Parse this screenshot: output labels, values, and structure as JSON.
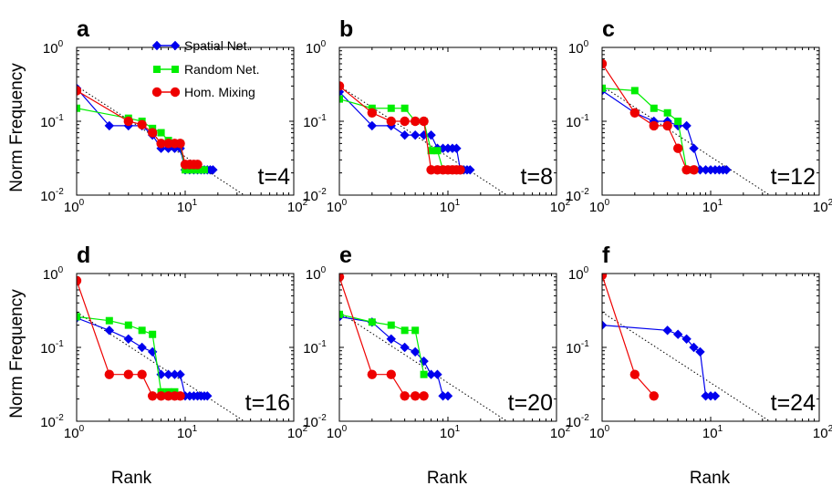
{
  "figure": {
    "ylabel": "Norm Frequency",
    "xlabel": "Rank",
    "x_tick_labels": [
      {
        "base": "10",
        "exp": "0"
      },
      {
        "base": "10",
        "exp": "1"
      },
      {
        "base": "10",
        "exp": "2"
      }
    ],
    "y_tick_labels": [
      {
        "base": "10",
        "exp": "0"
      },
      {
        "base": "10",
        "exp": "-1"
      },
      {
        "base": "10",
        "exp": "-2"
      }
    ]
  },
  "legend": [
    {
      "name": "Spatial Net.",
      "color": "#0000ee",
      "marker": "diamond"
    },
    {
      "name": "Random Net.",
      "color": "#00ee00",
      "marker": "square"
    },
    {
      "name": "Hom. Mixing",
      "color": "#ee0000",
      "marker": "circle"
    }
  ],
  "chart_data": [
    {
      "type": "line",
      "panel": "a",
      "time_label": "t=4",
      "xscale": "log",
      "yscale": "log",
      "xlim": [
        1,
        100
      ],
      "ylim": [
        0.01,
        1
      ],
      "reference_line": {
        "style": "dotted",
        "x": [
          1,
          35
        ],
        "y": [
          0.3,
          0.01
        ]
      },
      "series": [
        {
          "name": "Spatial Net.",
          "x": [
            1,
            2,
            3,
            4,
            5,
            6,
            7,
            8,
            9,
            10,
            11,
            12,
            13,
            14,
            15,
            16,
            17,
            18
          ],
          "y": [
            0.28,
            0.087,
            0.087,
            0.087,
            0.065,
            0.043,
            0.043,
            0.043,
            0.043,
            0.022,
            0.022,
            0.022,
            0.022,
            0.022,
            0.022,
            0.022,
            0.022,
            0.022
          ]
        },
        {
          "name": "Random Net.",
          "x": [
            1,
            3,
            4,
            5,
            6,
            7,
            8,
            9,
            10,
            11,
            12,
            13,
            14,
            15
          ],
          "y": [
            0.15,
            0.11,
            0.1,
            0.08,
            0.07,
            0.055,
            0.05,
            0.05,
            0.022,
            0.022,
            0.022,
            0.022,
            0.022,
            0.022
          ]
        },
        {
          "name": "Hom. Mixing",
          "x": [
            1,
            3,
            4,
            5,
            6,
            7,
            8,
            9,
            10,
            11,
            12,
            13
          ],
          "y": [
            0.26,
            0.1,
            0.09,
            0.07,
            0.05,
            0.05,
            0.05,
            0.05,
            0.026,
            0.026,
            0.026,
            0.026
          ]
        }
      ]
    },
    {
      "type": "line",
      "panel": "b",
      "time_label": "t=8",
      "xscale": "log",
      "yscale": "log",
      "xlim": [
        1,
        100
      ],
      "ylim": [
        0.01,
        1
      ],
      "reference_line": {
        "style": "dotted",
        "x": [
          1,
          35
        ],
        "y": [
          0.3,
          0.01
        ]
      },
      "series": [
        {
          "name": "Spatial Net.",
          "x": [
            1,
            2,
            3,
            4,
            5,
            6,
            7,
            8,
            9,
            10,
            11,
            12,
            13,
            14,
            15,
            16
          ],
          "y": [
            0.25,
            0.087,
            0.087,
            0.065,
            0.065,
            0.065,
            0.065,
            0.043,
            0.043,
            0.043,
            0.043,
            0.043,
            0.022,
            0.022,
            0.022,
            0.022
          ]
        },
        {
          "name": "Random Net.",
          "x": [
            1,
            2,
            3,
            4,
            5,
            6,
            7,
            8,
            9,
            10,
            11,
            12,
            13
          ],
          "y": [
            0.2,
            0.15,
            0.15,
            0.15,
            0.1,
            0.1,
            0.04,
            0.04,
            0.022,
            0.022,
            0.022,
            0.022,
            0.022
          ]
        },
        {
          "name": "Hom. Mixing",
          "x": [
            1,
            2,
            3,
            4,
            5,
            6,
            7,
            8,
            9,
            10,
            11,
            12,
            13
          ],
          "y": [
            0.3,
            0.13,
            0.1,
            0.1,
            0.1,
            0.1,
            0.022,
            0.022,
            0.022,
            0.022,
            0.022,
            0.022,
            0.022
          ]
        }
      ]
    },
    {
      "type": "line",
      "panel": "c",
      "time_label": "t=12",
      "xscale": "log",
      "yscale": "log",
      "xlim": [
        1,
        100
      ],
      "ylim": [
        0.01,
        1
      ],
      "reference_line": {
        "style": "dotted",
        "x": [
          1,
          35
        ],
        "y": [
          0.3,
          0.01
        ]
      },
      "series": [
        {
          "name": "Spatial Net.",
          "x": [
            1,
            2,
            3,
            4,
            5,
            6,
            7,
            8,
            9,
            10,
            11,
            12,
            13,
            14
          ],
          "y": [
            0.26,
            0.13,
            0.1,
            0.1,
            0.087,
            0.087,
            0.043,
            0.022,
            0.022,
            0.022,
            0.022,
            0.022,
            0.022,
            0.022
          ]
        },
        {
          "name": "Random Net.",
          "x": [
            1,
            2,
            3,
            4,
            5,
            6,
            7
          ],
          "y": [
            0.28,
            0.26,
            0.15,
            0.13,
            0.1,
            0.022,
            0.022
          ]
        },
        {
          "name": "Hom. Mixing",
          "x": [
            1,
            2,
            3,
            4,
            5,
            6,
            7
          ],
          "y": [
            0.6,
            0.13,
            0.087,
            0.087,
            0.043,
            0.022,
            0.022
          ]
        }
      ]
    },
    {
      "type": "line",
      "panel": "d",
      "time_label": "t=16",
      "xscale": "log",
      "yscale": "log",
      "xlim": [
        1,
        100
      ],
      "ylim": [
        0.01,
        1
      ],
      "reference_line": {
        "style": "dotted",
        "x": [
          1,
          35
        ],
        "y": [
          0.3,
          0.01
        ]
      },
      "series": [
        {
          "name": "Spatial Net.",
          "x": [
            1,
            2,
            3,
            4,
            5,
            6,
            7,
            8,
            9,
            10,
            11,
            12,
            13,
            14,
            15,
            16
          ],
          "y": [
            0.25,
            0.17,
            0.13,
            0.1,
            0.087,
            0.043,
            0.043,
            0.043,
            0.043,
            0.022,
            0.022,
            0.022,
            0.022,
            0.022,
            0.022,
            0.022
          ]
        },
        {
          "name": "Random Net.",
          "x": [
            1,
            2,
            3,
            4,
            5,
            6,
            7,
            8
          ],
          "y": [
            0.26,
            0.23,
            0.2,
            0.17,
            0.15,
            0.025,
            0.025,
            0.025
          ]
        },
        {
          "name": "Hom. Mixing",
          "x": [
            1,
            2,
            3,
            4,
            5,
            6,
            7,
            8,
            9
          ],
          "y": [
            0.8,
            0.043,
            0.043,
            0.043,
            0.022,
            0.022,
            0.022,
            0.022,
            0.022
          ]
        }
      ]
    },
    {
      "type": "line",
      "panel": "e",
      "time_label": "t=20",
      "xscale": "log",
      "yscale": "log",
      "xlim": [
        1,
        100
      ],
      "ylim": [
        0.01,
        1
      ],
      "reference_line": {
        "style": "dotted",
        "x": [
          1,
          35
        ],
        "y": [
          0.3,
          0.01
        ]
      },
      "series": [
        {
          "name": "Spatial Net.",
          "x": [
            1,
            2,
            3,
            4,
            5,
            6,
            7,
            8,
            9,
            10
          ],
          "y": [
            0.26,
            0.22,
            0.13,
            0.1,
            0.087,
            0.065,
            0.043,
            0.043,
            0.022,
            0.022
          ]
        },
        {
          "name": "Random Net.",
          "x": [
            1,
            2,
            3,
            4,
            5,
            6
          ],
          "y": [
            0.28,
            0.22,
            0.2,
            0.17,
            0.17,
            0.043
          ]
        },
        {
          "name": "Hom. Mixing",
          "x": [
            1,
            2,
            3,
            4,
            5,
            6
          ],
          "y": [
            0.9,
            0.043,
            0.043,
            0.022,
            0.022,
            0.022
          ]
        }
      ]
    },
    {
      "type": "line",
      "panel": "f",
      "time_label": "t=24",
      "xscale": "log",
      "yscale": "log",
      "xlim": [
        1,
        100
      ],
      "ylim": [
        0.01,
        1
      ],
      "reference_line": {
        "style": "dotted",
        "x": [
          1,
          35
        ],
        "y": [
          0.3,
          0.01
        ]
      },
      "series": [
        {
          "name": "Spatial Net.",
          "x": [
            1,
            4,
            5,
            6,
            7,
            8,
            9,
            10,
            11
          ],
          "y": [
            0.2,
            0.17,
            0.15,
            0.13,
            0.1,
            0.087,
            0.022,
            0.022,
            0.022
          ]
        },
        {
          "name": "Random Net.",
          "x": [],
          "y": []
        },
        {
          "name": "Hom. Mixing",
          "x": [
            1,
            2,
            3
          ],
          "y": [
            0.95,
            0.043,
            0.022
          ]
        }
      ]
    }
  ]
}
